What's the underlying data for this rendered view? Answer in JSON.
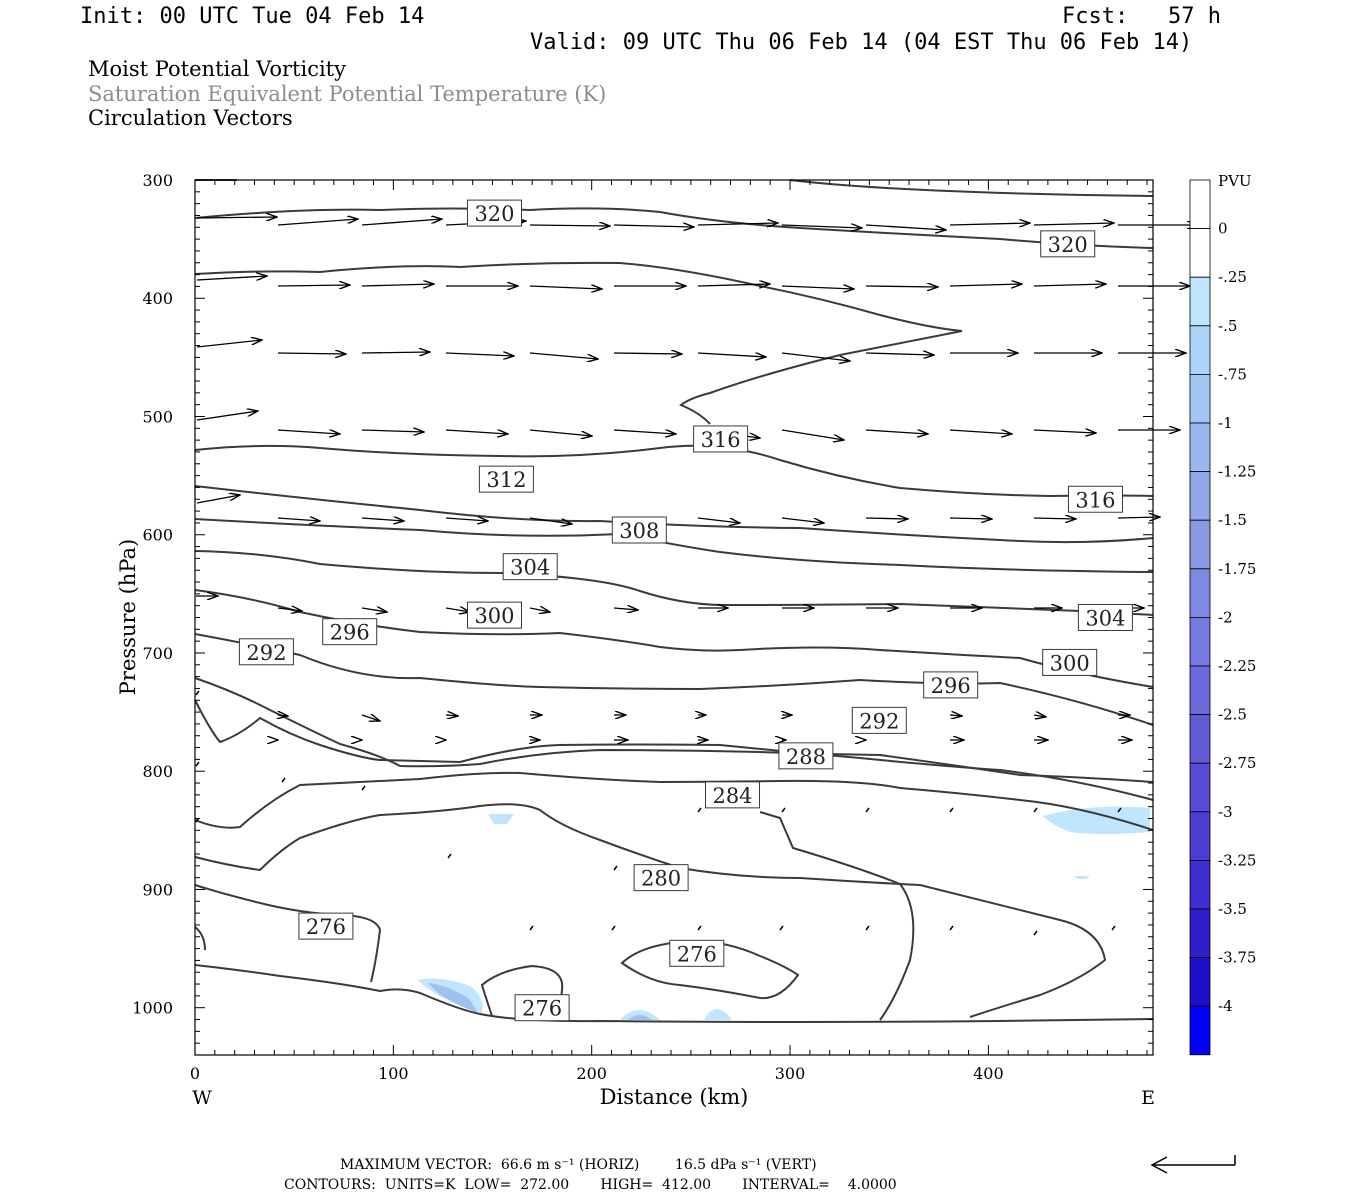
{
  "header": {
    "init": "Init: 00 UTC Tue 04 Feb 14",
    "fcst": "Fcst:   57 h",
    "valid": "Valid: 09 UTC Thu 06 Feb 14 (04 EST Thu 06 Feb 14)"
  },
  "titles": [
    "Moist Potential Vorticity",
    "Saturation Equivalent Potential Temperature (K)",
    "Circulation Vectors"
  ],
  "footer": {
    "max_vector_label": "MAXIMUM VECTOR:",
    "horiz": "66.6 m s⁻¹ (HORIZ)",
    "vert": "16.5 dPa s⁻¹ (VERT)",
    "contours": "CONTOURS:  UNITS=K  LOW=  272.00       HIGH=  412.00       INTERVAL=    4.0000"
  },
  "colors": {
    "contour": "#3a3a3a",
    "pv_light": "#bfe5ff",
    "pv_mid": "#9fc0f0"
  },
  "chart_data": {
    "type": "cross-section",
    "xlabel": "Distance (km)",
    "ylabel": "Pressure (hPa)",
    "x_ticks": [
      0,
      100,
      200,
      300,
      400
    ],
    "y_ticks": [
      300,
      400,
      500,
      600,
      700,
      800,
      900,
      1000
    ],
    "xlim": [
      0,
      483
    ],
    "ylim": [
      300,
      1040
    ],
    "x_left_label": "W",
    "x_right_label": "E",
    "colorbar": {
      "unit": "PVU",
      "labels": [
        "0",
        "-.25",
        "-.5",
        "-.75",
        "-1",
        "-1.25",
        "-1.5",
        "-1.75",
        "-2",
        "-2.25",
        "-2.5",
        "-2.75",
        "-3",
        "-3.25",
        "-3.5",
        "-3.75",
        "-4"
      ],
      "colors": [
        "#ffffff",
        "#ffffff",
        "#bfe6ff",
        "#acd6f9",
        "#a3c6f4",
        "#9bb7ef",
        "#92a7ea",
        "#8a98e6",
        "#8088e2",
        "#7679df",
        "#6c6adb",
        "#625bd8",
        "#574cd5",
        "#4c3cd2",
        "#3f2ccf",
        "#321dcc",
        "#1f0ec9",
        "#0000ff"
      ]
    },
    "contour_labels": [
      {
        "text": "320",
        "x": 151,
        "p": 328
      },
      {
        "text": "320",
        "x": 440,
        "p": 354
      },
      {
        "text": "316",
        "x": 265,
        "p": 519
      },
      {
        "text": "316",
        "x": 454,
        "p": 570
      },
      {
        "text": "312",
        "x": 157,
        "p": 553
      },
      {
        "text": "308",
        "x": 224,
        "p": 596
      },
      {
        "text": "304",
        "x": 169,
        "p": 627
      },
      {
        "text": "304",
        "x": 459,
        "p": 670
      },
      {
        "text": "300",
        "x": 151,
        "p": 668
      },
      {
        "text": "300",
        "x": 441,
        "p": 708
      },
      {
        "text": "296",
        "x": 78,
        "p": 682
      },
      {
        "text": "296",
        "x": 381,
        "p": 727
      },
      {
        "text": "292",
        "x": 36,
        "p": 699
      },
      {
        "text": "292",
        "x": 345,
        "p": 757
      },
      {
        "text": "288",
        "x": 308,
        "p": 787
      },
      {
        "text": "284",
        "x": 271,
        "p": 820
      },
      {
        "text": "280",
        "x": 235,
        "p": 890
      },
      {
        "text": "276",
        "x": 66,
        "p": 931
      },
      {
        "text": "276",
        "x": 253,
        "p": 954
      },
      {
        "text": "276",
        "x": 175,
        "p": 1000
      }
    ]
  }
}
